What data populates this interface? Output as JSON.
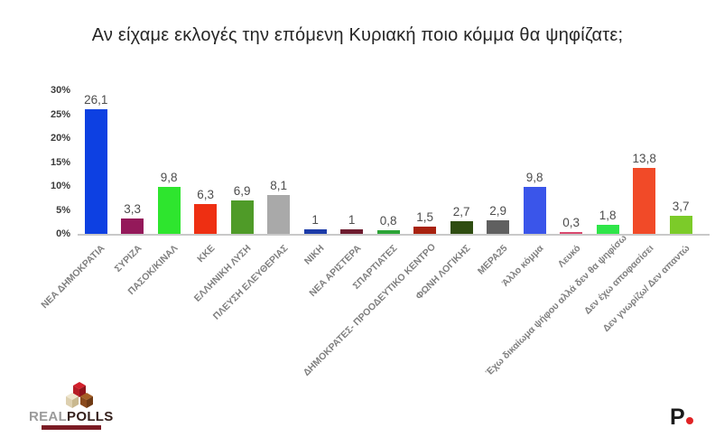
{
  "title": "Αν είχαμε εκλογές την επόμενη Κυριακή ποιο κόμμα θα ψηφίζατε;",
  "chart_data": {
    "type": "bar",
    "title": "Αν είχαμε εκλογές την επόμενη Κυριακή ποιο κόμμα θα ψηφίζατε;",
    "categories": [
      "ΝΕΑ ΔΗΜΟΚΡΑΤΙΑ",
      "ΣΥΡΙΖΑ",
      "ΠΑΣΟΚ/ΚΙΝΑΛ",
      "ΚΚΕ",
      "ΕΛΛΗΝΙΚΗ ΛΥΣΗ",
      "ΠΛΕΥΣΗ ΕΛΕΥΘΕΡΙΑΣ",
      "ΝΙΚΗ",
      "ΝΕΑ ΑΡΙΣΤΕΡΑ",
      "ΣΠΑΡΤΙΑΤΕΣ",
      "ΔΗΜΟΚΡΑΤΕΣ- ΠΡΟΟΔΕΥΤΙΚΟ ΚΕΝΤΡΟ",
      "ΦΩΝΗ ΛΟΓΙΚΗΣ",
      "ΜΕΡΑ25",
      "Άλλο κόμμα",
      "Λευκό",
      "Έχω δικαίωμα ψήφου αλλά δεν θα ψηφίσω",
      "Δεν έχω αποφασίσει",
      "Δεν γνωρίζω/ Δεν απαντώ"
    ],
    "values": [
      26.1,
      3.3,
      9.8,
      6.3,
      6.9,
      8.1,
      1,
      1,
      0.8,
      1.5,
      2.7,
      2.9,
      9.8,
      0.3,
      1.8,
      13.8,
      3.7
    ],
    "value_labels": [
      "26,1",
      "3,3",
      "9,8",
      "6,3",
      "6,9",
      "8,1",
      "1",
      "1",
      "0,8",
      "1,5",
      "2,7",
      "2,9",
      "9,8",
      "0,3",
      "1,8",
      "13,8",
      "3,7"
    ],
    "bar_colors": [
      "#0d40e2",
      "#94195a",
      "#2ee52e",
      "#ee2f12",
      "#4f9b28",
      "#a9a9a9",
      "#1c3ba8",
      "#6e1c2f",
      "#2ca437",
      "#a8220f",
      "#2f4d11",
      "#606060",
      "#3a55ea",
      "#d9486e",
      "#2fe549",
      "#f14a28",
      "#7ccb29"
    ],
    "xlabel": "",
    "ylabel": "",
    "ylim": [
      0,
      30
    ],
    "ytick_labels": [
      "0%",
      "5%",
      "10%",
      "15%",
      "20%",
      "25%",
      "30%"
    ],
    "ytick_values": [
      0,
      5,
      10,
      15,
      20,
      25,
      30
    ],
    "grid": false,
    "legend": false,
    "bar_label_decimal_separator": ","
  },
  "footer": {
    "realpolls": {
      "real": "REAL",
      "polls": "POLLS"
    },
    "publisher": {
      "letter": "P"
    }
  }
}
